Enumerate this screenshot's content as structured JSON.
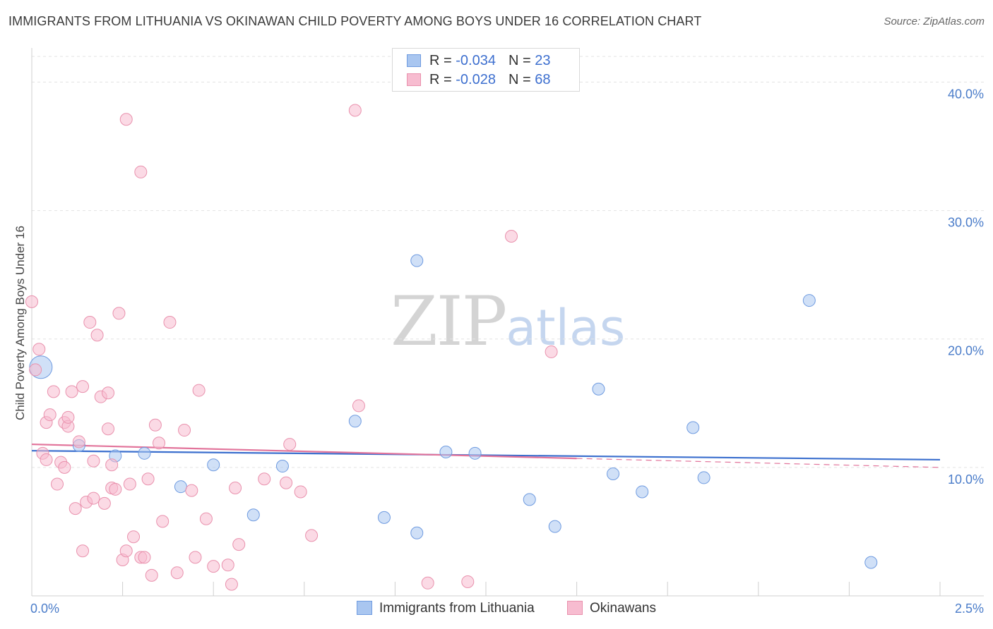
{
  "title": "IMMIGRANTS FROM LITHUANIA VS OKINAWAN CHILD POVERTY AMONG BOYS UNDER 16 CORRELATION CHART",
  "source": "Source: ZipAtlas.com",
  "watermark": {
    "zip": "ZIP",
    "atlas": "atlas"
  },
  "legend": {
    "rows": [
      {
        "r_label": "R = ",
        "r_value": "-0.034",
        "n_label": "N = ",
        "n_value": "23",
        "color": "#a9c6f0",
        "border": "#6f9be0"
      },
      {
        "r_label": "R = ",
        "r_value": "-0.028",
        "n_label": "N = ",
        "n_value": "68",
        "color": "#f7bcd0",
        "border": "#e991ad"
      }
    ]
  },
  "bottom_legend": [
    {
      "label": "Immigrants from Lithuania",
      "color": "#a9c6f0",
      "border": "#6f9be0"
    },
    {
      "label": "Okinawans",
      "color": "#f7bcd0",
      "border": "#e991ad"
    }
  ],
  "chart_data": {
    "type": "scatter",
    "title": "IMMIGRANTS FROM LITHUANIA VS OKINAWAN CHILD POVERTY AMONG BOYS UNDER 16 CORRELATION CHART",
    "xlabel": "",
    "ylabel": "Child Poverty Among Boys Under 16",
    "xlim": [
      0,
      2.5
    ],
    "ylim": [
      0,
      42
    ],
    "x_tick_labels": [
      "0.0%",
      "2.5%"
    ],
    "y_ticks": [
      10,
      20,
      30,
      40
    ],
    "y_tick_labels": [
      "10.0%",
      "20.0%",
      "30.0%",
      "40.0%"
    ],
    "grid": true,
    "legend_position": "top-center",
    "series": [
      {
        "name": "Immigrants from Lithuania",
        "color": "#a9c6f0",
        "stroke": "#6f9be0",
        "trend_color": "#3b6fce",
        "trend": {
          "x": [
            0,
            2.5
          ],
          "y": [
            11.3,
            10.6
          ]
        },
        "points": [
          {
            "x": 0.025,
            "y": 17.8,
            "big": true
          },
          {
            "x": 0.13,
            "y": 11.7
          },
          {
            "x": 0.23,
            "y": 10.9
          },
          {
            "x": 0.31,
            "y": 11.1
          },
          {
            "x": 0.41,
            "y": 8.5
          },
          {
            "x": 0.5,
            "y": 10.2
          },
          {
            "x": 0.61,
            "y": 6.3
          },
          {
            "x": 0.69,
            "y": 10.1
          },
          {
            "x": 0.89,
            "y": 13.6
          },
          {
            "x": 0.97,
            "y": 6.1
          },
          {
            "x": 1.06,
            "y": 4.9
          },
          {
            "x": 1.06,
            "y": 26.1
          },
          {
            "x": 1.14,
            "y": 11.2
          },
          {
            "x": 1.22,
            "y": 11.1
          },
          {
            "x": 1.37,
            "y": 7.5
          },
          {
            "x": 1.44,
            "y": 5.4
          },
          {
            "x": 1.56,
            "y": 16.1
          },
          {
            "x": 1.6,
            "y": 9.5
          },
          {
            "x": 1.68,
            "y": 8.1
          },
          {
            "x": 1.82,
            "y": 13.1
          },
          {
            "x": 1.85,
            "y": 9.2
          },
          {
            "x": 2.14,
            "y": 23.0
          },
          {
            "x": 2.31,
            "y": 2.6
          }
        ]
      },
      {
        "name": "Okinawans",
        "color": "#f7bcd0",
        "stroke": "#e991ad",
        "trend_color": "#e2749b",
        "trend": {
          "x": [
            0,
            1.5
          ],
          "y": [
            11.8,
            10.7
          ]
        },
        "trend_dashed": {
          "x": [
            1.5,
            2.5
          ],
          "y": [
            10.7,
            10.0
          ]
        },
        "points": [
          {
            "x": 0.0,
            "y": 22.9
          },
          {
            "x": 0.02,
            "y": 19.2
          },
          {
            "x": 0.01,
            "y": 17.6
          },
          {
            "x": 0.03,
            "y": 11.1
          },
          {
            "x": 0.04,
            "y": 10.6
          },
          {
            "x": 0.04,
            "y": 13.5
          },
          {
            "x": 0.05,
            "y": 14.1
          },
          {
            "x": 0.06,
            "y": 15.9
          },
          {
            "x": 0.07,
            "y": 8.7
          },
          {
            "x": 0.08,
            "y": 10.4
          },
          {
            "x": 0.09,
            "y": 10.0
          },
          {
            "x": 0.09,
            "y": 13.5
          },
          {
            "x": 0.1,
            "y": 13.2
          },
          {
            "x": 0.1,
            "y": 13.9
          },
          {
            "x": 0.11,
            "y": 15.9
          },
          {
            "x": 0.12,
            "y": 6.8
          },
          {
            "x": 0.13,
            "y": 12.0
          },
          {
            "x": 0.14,
            "y": 16.3
          },
          {
            "x": 0.14,
            "y": 3.5
          },
          {
            "x": 0.15,
            "y": 7.3
          },
          {
            "x": 0.16,
            "y": 21.3
          },
          {
            "x": 0.17,
            "y": 10.5
          },
          {
            "x": 0.17,
            "y": 7.6
          },
          {
            "x": 0.18,
            "y": 20.3
          },
          {
            "x": 0.19,
            "y": 15.5
          },
          {
            "x": 0.2,
            "y": 7.2
          },
          {
            "x": 0.21,
            "y": 13.0
          },
          {
            "x": 0.21,
            "y": 15.8
          },
          {
            "x": 0.22,
            "y": 8.4
          },
          {
            "x": 0.22,
            "y": 10.2
          },
          {
            "x": 0.23,
            "y": 8.3
          },
          {
            "x": 0.24,
            "y": 22.0
          },
          {
            "x": 0.25,
            "y": 2.8
          },
          {
            "x": 0.26,
            "y": 3.5
          },
          {
            "x": 0.26,
            "y": 37.1
          },
          {
            "x": 0.27,
            "y": 8.7
          },
          {
            "x": 0.28,
            "y": 4.6
          },
          {
            "x": 0.3,
            "y": 33.0
          },
          {
            "x": 0.3,
            "y": 3.0
          },
          {
            "x": 0.31,
            "y": 3.0
          },
          {
            "x": 0.32,
            "y": 9.1
          },
          {
            "x": 0.33,
            "y": 1.6
          },
          {
            "x": 0.34,
            "y": 13.3
          },
          {
            "x": 0.35,
            "y": 11.9
          },
          {
            "x": 0.36,
            "y": 5.8
          },
          {
            "x": 0.38,
            "y": 21.3
          },
          {
            "x": 0.4,
            "y": 1.8
          },
          {
            "x": 0.42,
            "y": 12.9
          },
          {
            "x": 0.44,
            "y": 8.2
          },
          {
            "x": 0.45,
            "y": 3.0
          },
          {
            "x": 0.46,
            "y": 16.0
          },
          {
            "x": 0.48,
            "y": 6.0
          },
          {
            "x": 0.5,
            "y": 2.3
          },
          {
            "x": 0.54,
            "y": 2.4
          },
          {
            "x": 0.55,
            "y": 0.9
          },
          {
            "x": 0.56,
            "y": 8.4
          },
          {
            "x": 0.57,
            "y": 4.0
          },
          {
            "x": 0.64,
            "y": 9.1
          },
          {
            "x": 0.7,
            "y": 8.8
          },
          {
            "x": 0.71,
            "y": 11.8
          },
          {
            "x": 0.74,
            "y": 8.1
          },
          {
            "x": 0.77,
            "y": 4.7
          },
          {
            "x": 0.89,
            "y": 37.8
          },
          {
            "x": 0.9,
            "y": 14.8
          },
          {
            "x": 1.09,
            "y": 1.0
          },
          {
            "x": 1.2,
            "y": 1.1
          },
          {
            "x": 1.32,
            "y": 28.0
          },
          {
            "x": 1.43,
            "y": 19.0
          }
        ]
      }
    ]
  }
}
